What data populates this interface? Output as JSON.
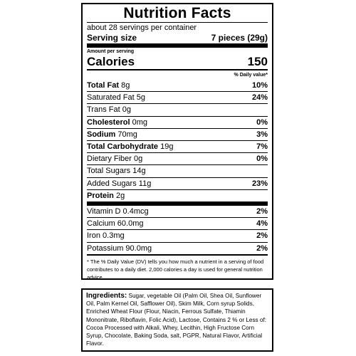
{
  "label": {
    "title": "Nutrition Facts",
    "servings_per_container": "about 28 servings per container",
    "serving_size_label": "Serving size",
    "serving_size_value": "7 pieces (29g)",
    "amount_per_serving": "Amount per serving",
    "calories_label": "Calories",
    "calories_value": "150",
    "daily_value_header": "% Daily value*",
    "nutrients": [
      {
        "name": "Total Fat",
        "amount": "8g",
        "pct": "10%"
      },
      {
        "name": "Saturated Fat",
        "amount": "5g",
        "pct": "24%"
      },
      {
        "name": "Trans Fat",
        "amount": "0g",
        "pct": ""
      },
      {
        "name": "Cholesterol",
        "amount": "0mg",
        "pct": "0%"
      },
      {
        "name": "Sodium",
        "amount": "70mg",
        "pct": "3%"
      },
      {
        "name": "Total Carbohydrate",
        "amount": "19g",
        "pct": "7%"
      },
      {
        "name": "Dietary Fiber",
        "amount": "0g",
        "pct": "0%"
      },
      {
        "name": "Total Sugars",
        "amount": "14g",
        "pct": ""
      },
      {
        "name": "Added Sugars",
        "amount": "11g",
        "pct": "23%"
      },
      {
        "name": "Protein",
        "amount": "2g",
        "pct": ""
      }
    ],
    "vitamins": [
      {
        "name": "Vitamin D",
        "amount": "0.4mcg",
        "pct": "2%"
      },
      {
        "name": "Calcium",
        "amount": "60.0mg",
        "pct": "4%"
      },
      {
        "name": "Iron",
        "amount": "0.3mg",
        "pct": "2%"
      },
      {
        "name": "Potassium",
        "amount": "90.0mg",
        "pct": "2%"
      }
    ],
    "footnote": "* The % Daily Value (DV) tells you how much a nutrient in a serving of food contributes to a daily diet. 2,000 calories a day is used for general nutrition advice."
  },
  "ingredients": {
    "label": "Ingredients:",
    "text": "Sugar, vegetable Oil (Palm Oil, Shea Oil, Sunflower Oil, Palm Kernel Oil, Safflower Oil), Skim Milk, Corn syrup Solids, Enriched Wheat Flour (Flour, Niacin, Ferrous Sulfate, Thiamin Mononitrate, Riboflavin, Folic Acid), Lactose, Contains 2 % or Less of: Cocoa Processed with Alkali, Whey, Lecithin, High Fructose Corn Syrup, Chocolate, Baking Soda, salt, PGPR, Natural Flavor, Artificial Flavor."
  }
}
